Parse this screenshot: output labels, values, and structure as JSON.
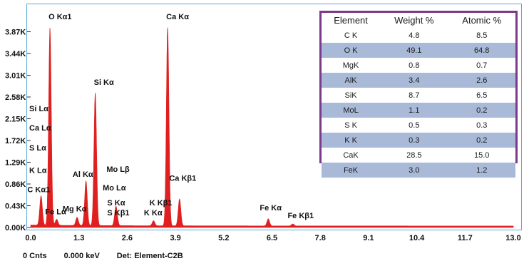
{
  "chart_data": {
    "type": "area",
    "title": "",
    "xlabel": "",
    "ylabel": "",
    "xlim": [
      0.0,
      13.0
    ],
    "ylim": [
      0,
      4.3
    ],
    "xticks": [
      "0.0",
      "1.3",
      "2.6",
      "3.9",
      "5.2",
      "6.5",
      "7.8",
      "9.1",
      "10.4",
      "11.7",
      "13.0"
    ],
    "yticks": [
      "0.00K",
      "0.43K",
      "0.86K",
      "1.29K",
      "1.72K",
      "2.15K",
      "2.58K",
      "3.01K",
      "3.44K",
      "3.87K"
    ],
    "series": [
      {
        "color": "#e02020",
        "peaks": [
          {
            "energy": 0.28,
            "counts": 0.58
          },
          {
            "energy": 0.52,
            "counts": 3.9
          },
          {
            "energy": 0.7,
            "counts": 0.12
          },
          {
            "energy": 1.25,
            "counts": 0.16
          },
          {
            "energy": 1.49,
            "counts": 0.88
          },
          {
            "energy": 1.74,
            "counts": 2.62
          },
          {
            "energy": 2.29,
            "counts": 0.22
          },
          {
            "energy": 2.31,
            "counts": 0.18
          },
          {
            "energy": 3.31,
            "counts": 0.1
          },
          {
            "energy": 3.69,
            "counts": 3.92
          },
          {
            "energy": 4.01,
            "counts": 0.53
          },
          {
            "energy": 6.4,
            "counts": 0.14
          },
          {
            "energy": 7.06,
            "counts": 0.04
          }
        ],
        "baseline": 0.03
      }
    ],
    "annotations": [
      {
        "text": "O  Kα1",
        "energy": 0.52,
        "level": 4.12
      },
      {
        "text": "Ca Kα",
        "energy": 3.69,
        "level": 4.12
      },
      {
        "text": "Si Kα",
        "energy": 1.74,
        "level": 2.82
      },
      {
        "text": "Si Lα",
        "energy": 0.0,
        "level": 2.3
      },
      {
        "text": "Ca Lα",
        "energy": 0.0,
        "level": 1.92
      },
      {
        "text": "S  Lα",
        "energy": 0.0,
        "level": 1.52
      },
      {
        "text": "K  Lα",
        "energy": 0.0,
        "level": 1.08
      },
      {
        "text": "C  Kα1",
        "energy": -0.05,
        "level": 0.7
      },
      {
        "text": "Mo Lβ",
        "energy": 2.08,
        "level": 1.1
      },
      {
        "text": "Al Kα",
        "energy": 1.17,
        "level": 1.0
      },
      {
        "text": "Mo Lα",
        "energy": 1.98,
        "level": 0.73
      },
      {
        "text": "Ca Kβ1",
        "energy": 3.77,
        "level": 0.92
      },
      {
        "text": "S  Kα",
        "energy": 2.1,
        "level": 0.44
      },
      {
        "text": "K  Kβ1",
        "energy": 3.24,
        "level": 0.44
      },
      {
        "text": "Fe Lα",
        "energy": 0.43,
        "level": 0.26
      },
      {
        "text": "Mg Kα",
        "energy": 0.9,
        "level": 0.32
      },
      {
        "text": "S  Kβ1",
        "energy": 2.1,
        "level": 0.24
      },
      {
        "text": "K  Kα",
        "energy": 3.09,
        "level": 0.24
      },
      {
        "text": "Fe Kα",
        "energy": 6.21,
        "level": 0.34
      },
      {
        "text": "Fe Kβ1",
        "energy": 6.96,
        "level": 0.18
      }
    ],
    "table": {
      "headers": [
        "Element",
        "Weight %",
        "Atomic %"
      ],
      "rows": [
        [
          "C K",
          "4.8",
          "8.5"
        ],
        [
          "O K",
          "49.1",
          "64.8"
        ],
        [
          "MgK",
          "0.8",
          "0.7"
        ],
        [
          "AlK",
          "3.4",
          "2.6"
        ],
        [
          "SiK",
          "8.7",
          "6.5"
        ],
        [
          "MoL",
          "1.1",
          "0.2"
        ],
        [
          "S K",
          "0.5",
          "0.3"
        ],
        [
          "K K",
          "0.3",
          "0.2"
        ],
        [
          "CaK",
          "28.5",
          "15.0"
        ],
        [
          "FeK",
          "3.0",
          "1.2"
        ]
      ]
    }
  },
  "status": {
    "counts": "0 Cnts",
    "energy": "0.000 keV",
    "detector": "Det: Element-C2B"
  },
  "colors": {
    "spectrum": "#e02020",
    "frame": "#5fa8d8",
    "table_border": "#7a3a8a",
    "table_row_alt": "#a9bad8"
  }
}
